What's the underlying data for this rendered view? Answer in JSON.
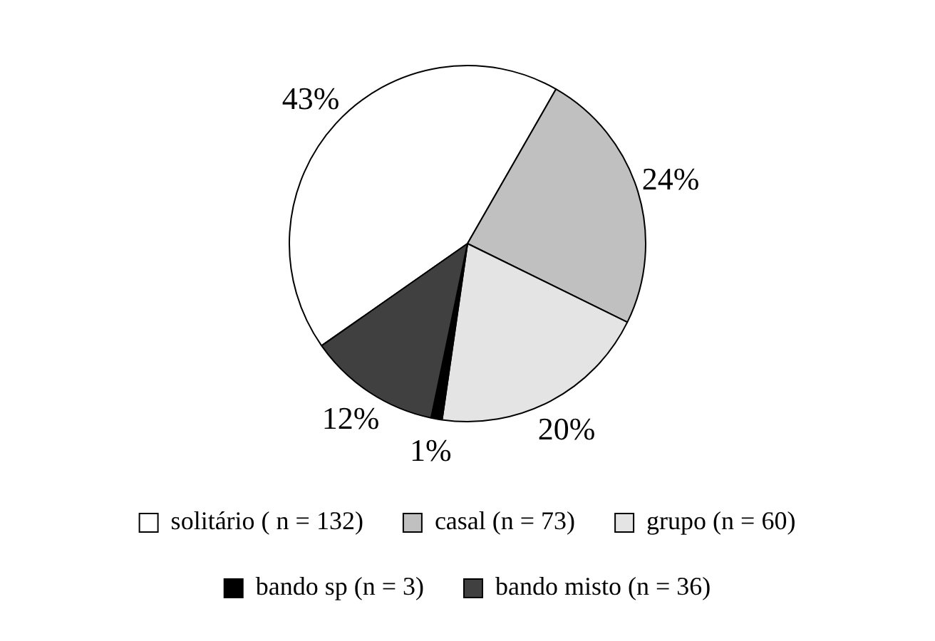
{
  "chart_data": {
    "type": "pie",
    "categories": [
      "solitário ( n = 132)",
      "casal (n = 73)",
      "grupo (n = 60)",
      "bando sp (n = 3)",
      "bando misto (n = 36)"
    ],
    "values": [
      43,
      24,
      20,
      1,
      12
    ],
    "colors": [
      "#ffffff",
      "#c0c0c0",
      "#e4e4e4",
      "#000000",
      "#404040"
    ],
    "value_labels": [
      "43%",
      "24%",
      "20%",
      "1%",
      "12%"
    ],
    "legend": "bottom"
  }
}
